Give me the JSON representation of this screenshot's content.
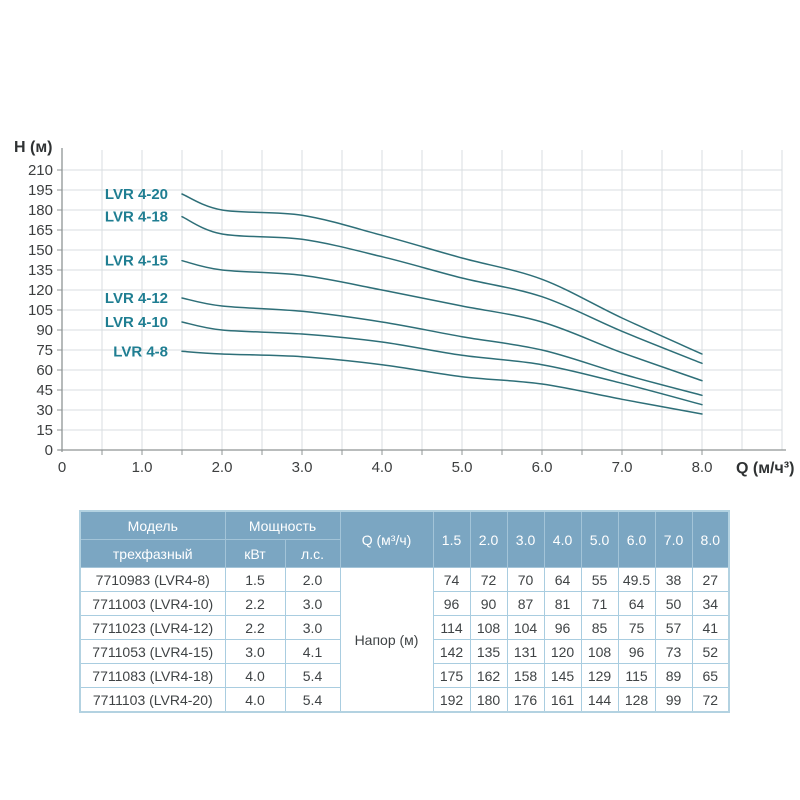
{
  "chart_data": {
    "type": "line",
    "title": "",
    "ylabel": "H (м)",
    "xlabel": "Q (м/ч³)",
    "x": [
      1.5,
      2.0,
      3.0,
      4.0,
      5.0,
      6.0,
      7.0,
      8.0
    ],
    "xlim": [
      0,
      9
    ],
    "ylim": [
      0,
      225
    ],
    "x_ticks": [
      0,
      1,
      2,
      3,
      4,
      5,
      6,
      7,
      8
    ],
    "x_tick_labels": [
      "0",
      "1.0",
      "2.0",
      "3.0",
      "4.0",
      "5.0",
      "6.0",
      "7.0",
      "8.0"
    ],
    "x_minor_step": 0.5,
    "y_ticks": [
      0,
      15,
      30,
      45,
      60,
      75,
      90,
      105,
      120,
      135,
      150,
      165,
      180,
      195,
      210
    ],
    "grid": true,
    "legend_position": "inline-left-labels",
    "series": [
      {
        "name": "LVR 4-20",
        "values": [
          192,
          180,
          176,
          161,
          144,
          128,
          99,
          72
        ]
      },
      {
        "name": "LVR 4-18",
        "values": [
          175,
          162,
          158,
          145,
          129,
          115,
          89,
          65
        ]
      },
      {
        "name": "LVR 4-15",
        "values": [
          142,
          135,
          131,
          120,
          108,
          96,
          73,
          52
        ]
      },
      {
        "name": "LVR 4-12",
        "values": [
          114,
          108,
          104,
          96,
          85,
          75,
          57,
          41
        ]
      },
      {
        "name": "LVR 4-10",
        "values": [
          96,
          90,
          87,
          81,
          71,
          64,
          50,
          34
        ]
      },
      {
        "name": "LVR 4-8",
        "values": [
          74,
          72,
          70,
          64,
          55,
          49.5,
          38,
          27
        ]
      }
    ]
  },
  "colors": {
    "curve": "#2e6f78",
    "curve_label": "#1f7e92",
    "axis": "#8f9494",
    "grid": "#d9dde0",
    "tick_text": "#3d3f40",
    "axis_title_text": "#2f3233",
    "table_header_bg": "#7ba6c2",
    "table_header_text": "#ffffff",
    "table_header_border": "#a3c4d8",
    "table_cell_border": "#a9cde0",
    "table_outer_border": "#b3d2e1",
    "table_text": "#3f4345"
  },
  "table": {
    "header": {
      "model": "Модель",
      "model_sub": "трехфазный",
      "power": "Мощность",
      "power_kw": "кВт",
      "power_hp": "л.с.",
      "q": "Q (м³/ч)",
      "flow_values": [
        "1.5",
        "2.0",
        "3.0",
        "4.0",
        "5.0",
        "6.0",
        "7.0",
        "8.0"
      ]
    },
    "napor_label": "Напор (м)",
    "rows": [
      {
        "model": "7710983 (LVR4-8)",
        "kw": "1.5",
        "hp": "2.0",
        "values": [
          "74",
          "72",
          "70",
          "64",
          "55",
          "49.5",
          "38",
          "27"
        ]
      },
      {
        "model": "7711003 (LVR4-10)",
        "kw": "2.2",
        "hp": "3.0",
        "values": [
          "96",
          "90",
          "87",
          "81",
          "71",
          "64",
          "50",
          "34"
        ]
      },
      {
        "model": "7711023 (LVR4-12)",
        "kw": "2.2",
        "hp": "3.0",
        "values": [
          "114",
          "108",
          "104",
          "96",
          "85",
          "75",
          "57",
          "41"
        ]
      },
      {
        "model": "7711053 (LVR4-15)",
        "kw": "3.0",
        "hp": "4.1",
        "values": [
          "142",
          "135",
          "131",
          "120",
          "108",
          "96",
          "73",
          "52"
        ]
      },
      {
        "model": "7711083 (LVR4-18)",
        "kw": "4.0",
        "hp": "5.4",
        "values": [
          "175",
          "162",
          "158",
          "145",
          "129",
          "115",
          "89",
          "65"
        ]
      },
      {
        "model": "7711103 (LVR4-20)",
        "kw": "4.0",
        "hp": "5.4",
        "values": [
          "192",
          "180",
          "176",
          "161",
          "144",
          "128",
          "99",
          "72"
        ]
      }
    ]
  }
}
